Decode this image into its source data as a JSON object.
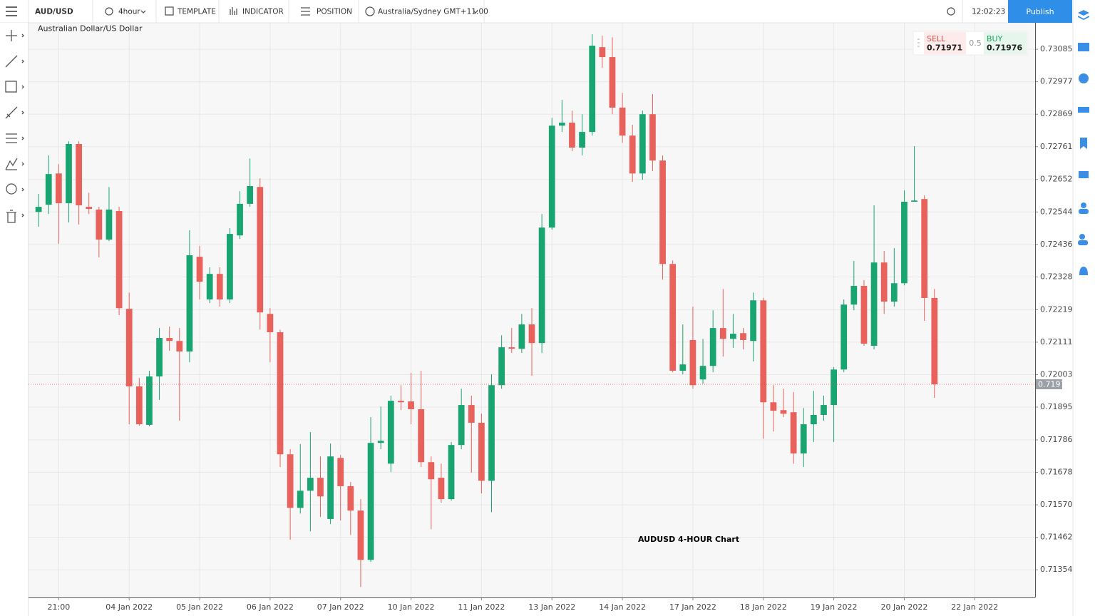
{
  "toolbar": {
    "symbol": "AUD/USD",
    "interval": "4hour",
    "template": "TEMPLATE",
    "indicator": "INDICATOR",
    "position": "POSITION",
    "timezone": "Australia/Sydney GMT+11:00",
    "clock": "12:02:23",
    "publish": "Publish"
  },
  "quote": {
    "sell_label": "SELL",
    "sell": 0.71971,
    "spread": 0.5,
    "buy_label": "BUY",
    "buy": 0.71976
  },
  "chart_data": {
    "type": "candlestick",
    "subtitle": "Australian Dollar/US Dollar",
    "annotation": "AUDUSD 4-HOUR Chart",
    "up_color": "#18a572",
    "down_color": "#e8625b",
    "grid": true,
    "last_price": 0.71971,
    "xlim": [
      -1,
      99
    ],
    "xticks": [
      {
        "value": 2,
        "label": "21:00"
      },
      {
        "value": 9,
        "label": "04 Jan 2022"
      },
      {
        "value": 16,
        "label": "05 Jan 2022"
      },
      {
        "value": 23,
        "label": "06 Jan 2022"
      },
      {
        "value": 30,
        "label": "07 Jan 2022"
      },
      {
        "value": 37,
        "label": "10 Jan 2022"
      },
      {
        "value": 44,
        "label": "11 Jan 2022"
      },
      {
        "value": 51,
        "label": "13 Jan 2022"
      },
      {
        "value": 58,
        "label": "14 Jan 2022"
      },
      {
        "value": 65,
        "label": "17 Jan 2022"
      },
      {
        "value": 72,
        "label": "18 Jan 2022"
      },
      {
        "value": 79,
        "label": "19 Jan 2022"
      },
      {
        "value": 86,
        "label": "20 Jan 2022"
      },
      {
        "value": 93,
        "label": "22 Jan 2022"
      }
    ],
    "ylim": [
      0.71262,
      0.73173
    ],
    "yticks": [
      0.73085,
      0.72977,
      0.72869,
      0.72761,
      0.72652,
      0.72544,
      0.72436,
      0.72328,
      0.72219,
      0.72111,
      0.72003,
      0.71895,
      0.71786,
      0.71678,
      {
        "value": 0.7157,
        "label": "0.71570"
      },
      0.71462,
      0.71354
    ],
    "open": [
      0.72544,
      0.72568,
      0.72672,
      0.72573,
      0.7277,
      0.72561,
      0.72552,
      0.72452,
      0.72547,
      0.72222,
      0.71964,
      0.71836,
      0.71997,
      0.72125,
      0.72115,
      0.7208,
      0.72395,
      0.72253,
      0.72338,
      0.72253,
      0.72466,
      0.72571,
      0.72627,
      0.72205,
      0.72144,
      0.71738,
      0.7156,
      0.71617,
      0.7166,
      0.71523,
      0.71726,
      0.71632,
      0.71551,
      0.71387,
      0.71776,
      0.71707,
      0.71916,
      0.71914,
      0.71888,
      0.71712,
      0.7166,
      0.71589,
      0.71769,
      0.71902,
      0.71843,
      0.7165,
      0.71968,
      0.72094,
      0.72089,
      0.7217,
      0.72108,
      0.72492,
      0.72831,
      0.72841,
      0.72758,
      0.7281,
      0.73092,
      0.73059,
      0.72891,
      0.72798,
      0.72672,
      0.72869,
      0.72715,
      0.72371,
      0.72016,
      0.72118,
      0.71987,
      0.72032,
      0.72158,
      0.72122,
      0.72141,
      0.72115,
      0.7225,
      0.71911,
      0.71885,
      0.71878,
      0.71741,
      0.71838,
      0.71869,
      0.71902,
      0.7202,
      0.72236,
      0.72298,
      0.72099,
      0.72376,
      0.72246,
      0.72307,
      0.72578,
      0.72587,
      0.72258
    ],
    "high": [
      0.72604,
      0.72732,
      0.72703,
      0.72779,
      0.72779,
      0.72608,
      0.72561,
      0.72627,
      0.72561,
      0.72276,
      0.71992,
      0.72016,
      0.72158,
      0.72163,
      0.72158,
      0.72483,
      0.72431,
      0.7236,
      0.7236,
      0.7249,
      0.72613,
      0.72722,
      0.72656,
      0.72224,
      0.72153,
      0.71755,
      0.71772,
      0.71812,
      0.71731,
      0.71774,
      0.71736,
      0.71646,
      0.71589,
      0.71862,
      0.71897,
      0.71933,
      0.71968,
      0.72009,
      0.72016,
      0.71731,
      0.71707,
      0.71779,
      0.71956,
      0.71933,
      0.71873,
      0.72004,
      0.72134,
      0.72158,
      0.72205,
      0.72224,
      0.72537,
      0.72857,
      0.72917,
      0.72881,
      0.72869,
      0.73135,
      0.7313,
      0.73125,
      0.7294,
      0.72834,
      0.72881,
      0.72936,
      0.72732,
      0.72383,
      0.7217,
      0.72229,
      0.72122,
      0.72217,
      0.72288,
      0.72205,
      0.72158,
      0.72276,
      0.72258,
      0.71968,
      0.71956,
      0.71945,
      0.71892,
      0.71949,
      0.71933,
      0.72028,
      0.72253,
      0.72381,
      0.72317,
      0.72566,
      0.72414,
      0.72424,
      0.72616,
      0.72763,
      0.72599,
      0.72288
    ],
    "low": [
      0.72495,
      0.72537,
      0.72438,
      0.72509,
      0.72502,
      0.72537,
      0.72393,
      0.72447,
      0.72201,
      0.71838,
      0.71833,
      0.71831,
      0.71919,
      0.72082,
      0.7185,
      0.72044,
      0.72253,
      0.72241,
      0.72229,
      0.72241,
      0.72454,
      0.72561,
      0.72153,
      0.72044,
      0.71696,
      0.71454,
      0.71541,
      0.71482,
      0.7153,
      0.71506,
      0.71518,
      0.7147,
      0.71297,
      0.7138,
      0.71755,
      0.71679,
      0.71885,
      0.71838,
      0.71696,
      0.71489,
      0.71577,
      0.71584,
      0.71755,
      0.71677,
      0.71608,
      0.71546,
      0.71956,
      0.72075,
      0.72075,
      0.71999,
      0.72075,
      0.72485,
      0.7281,
      0.72746,
      0.72732,
      0.72798,
      0.73023,
      0.72869,
      0.72774,
      0.72644,
      0.72651,
      0.7268,
      0.72319,
      0.72011,
      0.72004,
      0.71956,
      0.71973,
      0.72011,
      0.72063,
      0.72092,
      0.72087,
      0.72047,
      0.7179,
      0.71814,
      0.71862,
      0.71707,
      0.71696,
      0.71779,
      0.7185,
      0.71779,
      0.72011,
      0.72217,
      0.72099,
      0.72087,
      0.72205,
      0.72229,
      0.723,
      0.72578,
      0.72182,
      0.71926
    ],
    "close": [
      0.72561,
      0.7267,
      0.72573,
      0.7277,
      0.72566,
      0.72554,
      0.72452,
      0.72552,
      0.72224,
      0.71964,
      0.71838,
      0.71997,
      0.72125,
      0.72115,
      0.7208,
      0.724,
      0.72312,
      0.72338,
      0.72253,
      0.72471,
      0.72571,
      0.7263,
      0.7221,
      0.72144,
      0.71738,
      0.7156,
      0.71617,
      0.7166,
      0.71598,
      0.71731,
      0.71632,
      0.71551,
      0.71387,
      0.71776,
      0.71783,
      0.71916,
      0.71911,
      0.71888,
      0.71712,
      0.71655,
      0.71589,
      0.71769,
      0.71902,
      0.71843,
      0.7165,
      0.71968,
      0.72094,
      0.72089,
      0.7217,
      0.72108,
      0.72492,
      0.72831,
      0.72841,
      0.72758,
      0.7281,
      0.73097,
      0.73059,
      0.72891,
      0.72798,
      0.72672,
      0.72869,
      0.72715,
      0.72371,
      0.72016,
      0.72037,
      0.71968,
      0.72032,
      0.72158,
      0.72122,
      0.72139,
      0.72118,
      0.7225,
      0.71911,
      0.71883,
      0.71873,
      0.71741,
      0.71838,
      0.71869,
      0.71902,
      0.7202,
      0.72236,
      0.72298,
      0.72106,
      0.72376,
      0.72246,
      0.72307,
      0.72578,
      0.72582,
      0.72258,
      0.71971
    ]
  }
}
